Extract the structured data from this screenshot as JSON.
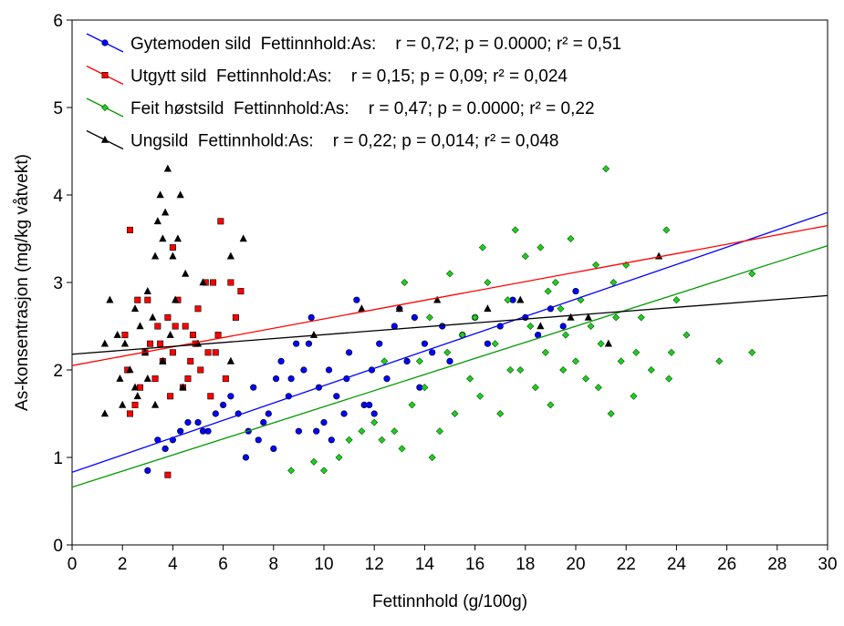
{
  "chart_data": {
    "type": "scatter",
    "x_label": "Fettinnhold (g/100g)",
    "y_label": "As-konsentrasjon (mg/kg våtvekt)",
    "xlim": [
      0,
      30
    ],
    "xticks": [
      0,
      2,
      4,
      6,
      8,
      10,
      12,
      14,
      16,
      18,
      20,
      22,
      24,
      26,
      28,
      30
    ],
    "ylim": [
      0,
      6
    ],
    "yticks": [
      0,
      1,
      2,
      3,
      4,
      5,
      6
    ],
    "grid": false,
    "legend": "upper left",
    "series": [
      {
        "name": "Gytemoden sild  Fettinnhold:As:    r = 0,72; p = 0.0000; r² = 0,51",
        "color": "#0000ff",
        "marker": "circle",
        "x": [
          3.0,
          3.4,
          3.7,
          4.0,
          4.3,
          4.6,
          5.0,
          5.4,
          5.7,
          6.0,
          6.3,
          6.6,
          7.0,
          7.4,
          7.2,
          7.8,
          8.1,
          8.3,
          8.6,
          8.9,
          9.2,
          9.5,
          9.8,
          10.0,
          10.2,
          10.5,
          10.8,
          11.0,
          11.3,
          11.6,
          11.9,
          12.2,
          12.5,
          12.8,
          13.0,
          13.3,
          13.6,
          14.0,
          14.3,
          14.7,
          15.0,
          15.5,
          16.0,
          16.5,
          17.0,
          17.5,
          18.0,
          18.5,
          19.0,
          19.5,
          20.0,
          9.0,
          9.7,
          10.3,
          6.9,
          8.0,
          5.2,
          12.0,
          13.8,
          7.6,
          11.8,
          10.9,
          8.7,
          9.4
        ],
        "values": [
          0.85,
          1.2,
          1.1,
          1.2,
          1.3,
          1.4,
          1.4,
          1.3,
          1.5,
          1.6,
          1.7,
          1.5,
          1.3,
          1.2,
          1.8,
          1.5,
          1.9,
          2.1,
          1.7,
          2.3,
          2.0,
          2.6,
          1.8,
          1.4,
          2.0,
          1.7,
          1.5,
          2.2,
          2.8,
          1.6,
          2.0,
          2.3,
          1.9,
          2.5,
          2.7,
          2.1,
          2.6,
          2.3,
          2.2,
          2.5,
          2.1,
          2.4,
          2.6,
          2.3,
          2.5,
          2.8,
          2.6,
          2.4,
          2.7,
          2.5,
          2.9,
          1.3,
          1.3,
          1.2,
          1.0,
          1.1,
          1.3,
          1.5,
          1.8,
          1.4,
          1.6,
          1.9,
          1.9,
          2.3
        ],
        "fit_x": [
          0,
          30
        ],
        "fit_y": [
          0.83,
          3.8
        ]
      },
      {
        "name": "Utgytt sild  Fettinnhold:As:    r = 0,15; p = 0,09; r² = 0,024",
        "color": "#ff0000",
        "marker": "square",
        "x": [
          5.9,
          2.3,
          4.0,
          6.3,
          5.6,
          5.3,
          6.7,
          3.0,
          4.2,
          5.0,
          2.6,
          3.8,
          6.5,
          4.5,
          3.4,
          2.1,
          5.8,
          4.8,
          3.1,
          2.9,
          4.0,
          5.4,
          3.6,
          4.7,
          2.2,
          5.1,
          3.3,
          6.1,
          2.7,
          4.4,
          3.9,
          5.5,
          2.5,
          2.3,
          3.8,
          4.9,
          4.1,
          3.5,
          5.7,
          4.6
        ],
        "values": [
          3.7,
          3.6,
          3.4,
          3.0,
          3.0,
          3.0,
          2.9,
          2.8,
          2.8,
          2.7,
          2.8,
          2.6,
          2.6,
          2.5,
          2.5,
          2.4,
          2.4,
          2.4,
          2.3,
          2.2,
          2.2,
          2.2,
          2.1,
          2.1,
          2.0,
          2.0,
          1.9,
          1.9,
          1.8,
          1.8,
          1.7,
          1.7,
          1.6,
          1.5,
          0.8,
          2.3,
          2.5,
          2.3,
          2.2,
          1.9
        ],
        "fit_x": [
          0,
          30
        ],
        "fit_y": [
          2.05,
          3.65
        ]
      },
      {
        "name": "Feit høstsild  Fettinnhold:As:    r = 0,47; p = 0.0000; r² = 0,22",
        "color": "#00a000",
        "marker": "diamond",
        "x": [
          8.7,
          9.6,
          10.0,
          10.6,
          11.0,
          11.5,
          12.0,
          12.3,
          12.8,
          13.1,
          13.5,
          13.8,
          14.0,
          14.3,
          14.6,
          14.9,
          15.2,
          15.5,
          15.8,
          16.0,
          16.2,
          16.5,
          16.8,
          17.0,
          17.3,
          17.6,
          17.8,
          18.0,
          18.2,
          18.4,
          18.6,
          18.8,
          19.0,
          19.2,
          19.4,
          19.6,
          19.8,
          20.0,
          20.2,
          20.4,
          20.6,
          20.8,
          21.0,
          21.2,
          21.4,
          21.6,
          21.8,
          22.0,
          22.3,
          22.6,
          23.0,
          23.6,
          24.0,
          24.4,
          23.8,
          23.7,
          25.7,
          27.0,
          27.0,
          13.2,
          12.4,
          15.0,
          16.3,
          17.4,
          19.5,
          18.9,
          20.9,
          21.5,
          22.4,
          14.2
        ],
        "values": [
          0.85,
          0.95,
          0.85,
          1.0,
          1.2,
          1.3,
          1.4,
          1.2,
          1.3,
          1.1,
          1.6,
          2.1,
          1.8,
          1.0,
          1.3,
          2.2,
          1.5,
          2.4,
          1.9,
          2.6,
          1.7,
          3.0,
          2.3,
          1.5,
          2.8,
          3.6,
          2.0,
          3.3,
          2.5,
          1.8,
          3.4,
          2.2,
          1.6,
          3.0,
          2.7,
          2.4,
          3.5,
          2.1,
          2.8,
          1.9,
          2.5,
          3.2,
          2.3,
          4.3,
          1.5,
          2.6,
          2.1,
          3.2,
          1.7,
          2.6,
          2.0,
          3.6,
          2.8,
          2.4,
          2.2,
          1.9,
          2.1,
          2.2,
          3.1,
          3.0,
          2.1,
          3.1,
          3.4,
          2.0,
          2.0,
          2.9,
          1.8,
          3.0,
          2.2,
          2.6
        ],
        "fit_x": [
          0,
          30
        ],
        "fit_y": [
          0.66,
          3.42
        ]
      },
      {
        "name": "Ungsild  Fettinnhold:As:    r = 0,22; p = 0,014; r² = 0,048",
        "color": "#000000",
        "marker": "triangle",
        "x": [
          3.8,
          3.5,
          4.3,
          3.7,
          3.4,
          3.6,
          4.2,
          6.8,
          4.0,
          6.3,
          3.3,
          4.5,
          5.2,
          3.0,
          4.1,
          1.5,
          2.5,
          3.2,
          2.7,
          1.8,
          3.9,
          2.1,
          1.3,
          2.9,
          3.6,
          2.3,
          1.9,
          3.0,
          2.5,
          4.4,
          2.6,
          3.3,
          2.0,
          1.3,
          5.0,
          6.3,
          9.6,
          11.5,
          13.0,
          14.5,
          16.5,
          17.8,
          20.5,
          23.3,
          21.3,
          19.8,
          18.6
        ],
        "values": [
          4.3,
          4.0,
          4.0,
          3.8,
          3.7,
          3.5,
          3.5,
          3.5,
          3.3,
          3.3,
          3.3,
          3.1,
          3.0,
          2.9,
          2.8,
          2.8,
          2.7,
          2.6,
          2.5,
          2.4,
          2.4,
          2.3,
          2.3,
          2.2,
          2.1,
          2.0,
          1.9,
          1.9,
          1.8,
          1.8,
          1.7,
          1.6,
          1.6,
          1.5,
          2.3,
          2.1,
          2.4,
          2.7,
          2.7,
          2.8,
          2.7,
          2.8,
          2.6,
          3.3,
          2.3,
          2.6,
          2.5
        ],
        "fit_x": [
          0,
          30
        ],
        "fit_y": [
          2.18,
          2.85
        ]
      }
    ]
  }
}
